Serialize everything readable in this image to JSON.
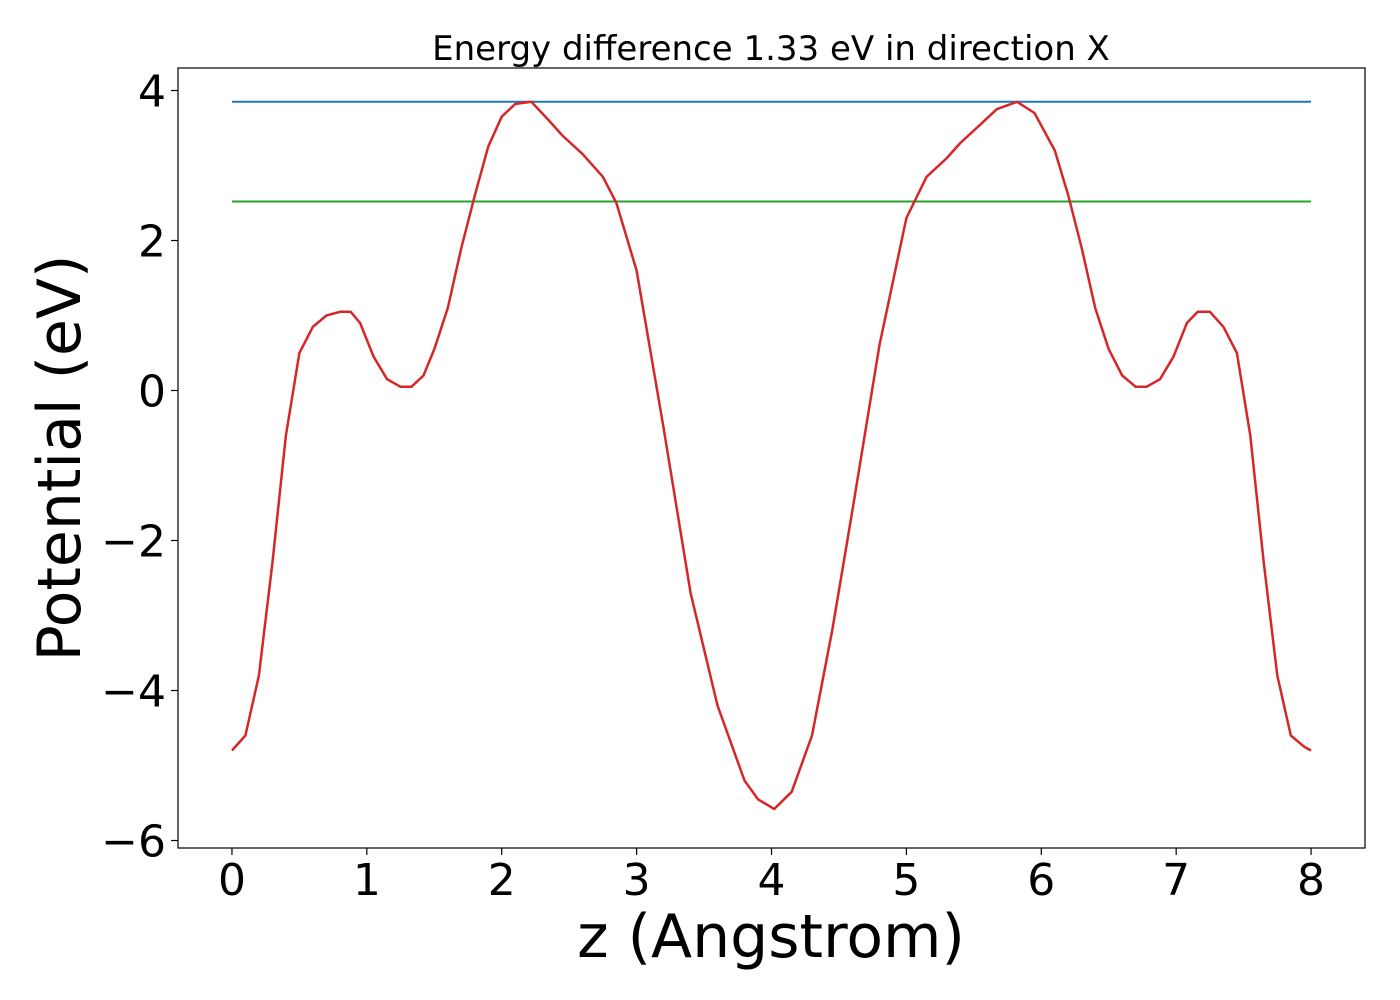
{
  "chart_data": {
    "type": "line",
    "title": "Energy difference 1.33 eV in direction X",
    "xlabel": "z (Angstrom)",
    "ylabel": "Potential (eV)",
    "xlim": [
      -0.4,
      8.4
    ],
    "ylim": [
      -6.1,
      4.3
    ],
    "grid": false,
    "legend": "none",
    "xticks": [
      0,
      1,
      2,
      3,
      4,
      5,
      6,
      7,
      8
    ],
    "xtick_labels": [
      "0",
      "1",
      "2",
      "3",
      "4",
      "5",
      "6",
      "7",
      "8"
    ],
    "yticks": [
      -6,
      -4,
      -2,
      0,
      2,
      4
    ],
    "ytick_labels": [
      "−6",
      "−4",
      "−2",
      "0",
      "2",
      "4"
    ],
    "series": [
      {
        "color": "#1f77b4",
        "x": [
          0,
          8
        ],
        "y": [
          3.85,
          3.85
        ]
      },
      {
        "color": "#2ca02c",
        "x": [
          0,
          8
        ],
        "y": [
          2.52,
          2.52
        ]
      },
      {
        "color": "#d62728",
        "x": [
          0,
          0.1,
          0.2,
          0.3,
          0.4,
          0.5,
          0.6,
          0.7,
          0.8,
          0.88,
          0.95,
          1.05,
          1.15,
          1.25,
          1.33,
          1.42,
          1.5,
          1.6,
          1.7,
          1.8,
          1.9,
          2.0,
          2.1,
          2.22,
          2.35,
          2.45,
          2.6,
          2.75,
          2.85,
          3.0,
          3.2,
          3.4,
          3.6,
          3.8,
          3.9,
          4.02,
          4.15,
          4.3,
          4.45,
          4.6,
          4.8,
          5.0,
          5.15,
          5.3,
          5.4,
          5.55,
          5.67,
          5.82,
          5.95,
          6.1,
          6.2,
          6.3,
          6.4,
          6.5,
          6.6,
          6.7,
          6.78,
          6.88,
          6.98,
          7.08,
          7.16,
          7.25,
          7.35,
          7.45,
          7.55,
          7.65,
          7.75,
          7.85,
          7.95,
          8.0
        ],
        "y": [
          -4.8,
          -4.6,
          -3.8,
          -2.3,
          -0.6,
          0.5,
          0.85,
          1.0,
          1.05,
          1.05,
          0.9,
          0.45,
          0.15,
          0.05,
          0.05,
          0.2,
          0.55,
          1.1,
          1.9,
          2.6,
          3.25,
          3.65,
          3.82,
          3.85,
          3.6,
          3.4,
          3.15,
          2.85,
          2.5,
          1.6,
          -0.5,
          -2.7,
          -4.2,
          -5.2,
          -5.45,
          -5.58,
          -5.35,
          -4.6,
          -3.2,
          -1.6,
          0.6,
          2.3,
          2.85,
          3.1,
          3.3,
          3.55,
          3.75,
          3.85,
          3.7,
          3.2,
          2.6,
          1.9,
          1.1,
          0.55,
          0.2,
          0.05,
          0.05,
          0.15,
          0.45,
          0.9,
          1.05,
          1.05,
          0.85,
          0.5,
          -0.6,
          -2.3,
          -3.8,
          -4.6,
          -4.75,
          -4.8
        ]
      }
    ]
  }
}
